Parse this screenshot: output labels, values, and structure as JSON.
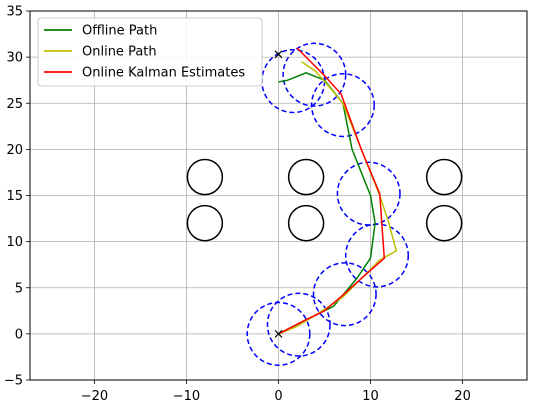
{
  "chart_data": {
    "type": "line",
    "title": "",
    "xlabel": "",
    "ylabel": "",
    "xlim": [
      -27,
      27
    ],
    "ylim": [
      -5,
      35
    ],
    "xticks": [
      -20,
      -10,
      0,
      10,
      20
    ],
    "yticks": [
      -5,
      0,
      5,
      10,
      15,
      20,
      25,
      30,
      35
    ],
    "xtick_labels": [
      "−20",
      "−10",
      "0",
      "10",
      "20"
    ],
    "ytick_labels": [
      "−5",
      "0",
      "5",
      "10",
      "15",
      "20",
      "25",
      "30",
      "35"
    ],
    "grid": true,
    "legend_position": "top-left",
    "series": [
      {
        "name": "Offline Path",
        "color": "#008000",
        "x": [
          0,
          2,
          4,
          6,
          7,
          8.5,
          10,
          10.5,
          10,
          8,
          7,
          5,
          3,
          1,
          0
        ],
        "y": [
          0,
          1,
          2,
          3,
          4.2,
          6,
          8.2,
          12,
          15,
          20,
          25,
          27.5,
          28.3,
          27.5,
          27.3
        ]
      },
      {
        "name": "Online Path",
        "color": "#bfbf00",
        "x": [
          0,
          2,
          4,
          7,
          9,
          11,
          12.8,
          12,
          11,
          9,
          7,
          5.5,
          4,
          2.5
        ],
        "y": [
          0,
          0.8,
          2,
          4,
          6,
          8,
          9,
          12,
          15,
          20,
          25,
          26.8,
          28.5,
          29.5
        ]
      },
      {
        "name": "Online Kalman Estimates",
        "color": "#ff0000",
        "x": [
          0,
          2.5,
          5,
          7,
          9,
          11.5,
          11,
          9,
          6.8,
          5,
          3,
          2
        ],
        "y": [
          0,
          1.3,
          2.5,
          4.2,
          6,
          8.2,
          15.2,
          20,
          26,
          28,
          30,
          31
        ]
      }
    ],
    "dashed_circles": {
      "color": "#0000ff",
      "radius": 3.4,
      "centers": [
        [
          0,
          0
        ],
        [
          2.2,
          1.0
        ],
        [
          7.2,
          4.3
        ],
        [
          10.7,
          8.5
        ],
        [
          9.8,
          15.2
        ],
        [
          7,
          24.8
        ],
        [
          3.9,
          28.1
        ],
        [
          1.6,
          27.4
        ]
      ]
    },
    "solid_circles": {
      "color": "#000000",
      "radius": 1.9,
      "centers": [
        [
          -8,
          17
        ],
        [
          3,
          17
        ],
        [
          18,
          17
        ],
        [
          -8,
          12
        ],
        [
          3,
          12
        ],
        [
          18,
          12
        ]
      ]
    },
    "x_markers": [
      [
        0,
        0
      ],
      [
        0,
        30.3
      ]
    ]
  }
}
